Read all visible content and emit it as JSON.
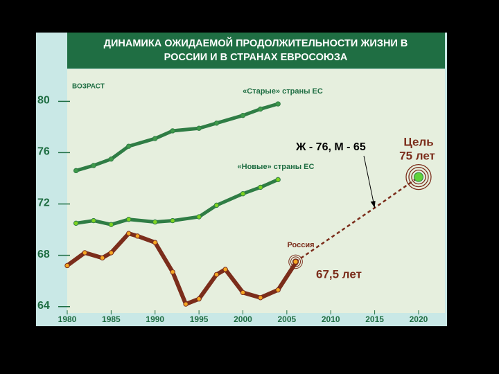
{
  "chart_data": {
    "type": "line",
    "title": [
      "ДИНАМИКА ОЖИДАЕМОЙ ПРОДОЛЖИТЕЛЬНОСТИ ЖИЗНИ В",
      "РОССИИ И В СТРАНАХ ЕВРОСОЮЗА"
    ],
    "y_label": "ВОЗРАСТ",
    "xlim": [
      1980,
      2023
    ],
    "ylim": [
      63.5,
      82.5
    ],
    "xticks": [
      1980,
      1985,
      1990,
      1995,
      2000,
      2005,
      2010,
      2015,
      2020
    ],
    "yticks": [
      64,
      68,
      72,
      76,
      80
    ],
    "series": [
      {
        "name": "«Старые» страны ЕС",
        "color": "#2f7d45",
        "marker_color": "#3f9a4a",
        "x": [
          1981,
          1983,
          1985,
          1987,
          1990,
          1992,
          1995,
          1997,
          2000,
          2002,
          2004
        ],
        "values": [
          74.6,
          75.0,
          75.5,
          76.5,
          77.1,
          77.7,
          77.9,
          78.3,
          78.9,
          79.4,
          79.8
        ]
      },
      {
        "name": "«Новые» страны ЕС",
        "color": "#2f7d45",
        "marker_color": "#7ed321",
        "x": [
          1981,
          1983,
          1985,
          1987,
          1990,
          1992,
          1995,
          1997,
          2000,
          2002,
          2004
        ],
        "values": [
          70.5,
          70.7,
          70.4,
          70.8,
          70.6,
          70.7,
          71.0,
          71.9,
          72.8,
          73.3,
          73.9
        ]
      },
      {
        "name": "Россия",
        "color": "#7b2d1b",
        "marker_color": "#f5a623",
        "x": [
          1980,
          1982,
          1984,
          1985,
          1987,
          1988,
          1990,
          1992,
          1993.5,
          1995,
          1997,
          1998,
          2000,
          2002,
          2004,
          2006
        ],
        "values": [
          67.2,
          68.2,
          67.8,
          68.2,
          69.7,
          69.5,
          69.0,
          66.7,
          64.2,
          64.6,
          66.5,
          66.9,
          65.1,
          64.7,
          65.3,
          67.4
        ]
      }
    ],
    "projection": {
      "color": "#7b2d1b",
      "x": [
        2006,
        2015,
        2020
      ],
      "values": [
        67.5,
        71.7,
        74.1
      ]
    },
    "annotations": {
      "forecast": "Ж - 76, М - 65",
      "goal": "Цель",
      "goal_value": "75 лет",
      "current_value": "67,5 лет"
    }
  }
}
